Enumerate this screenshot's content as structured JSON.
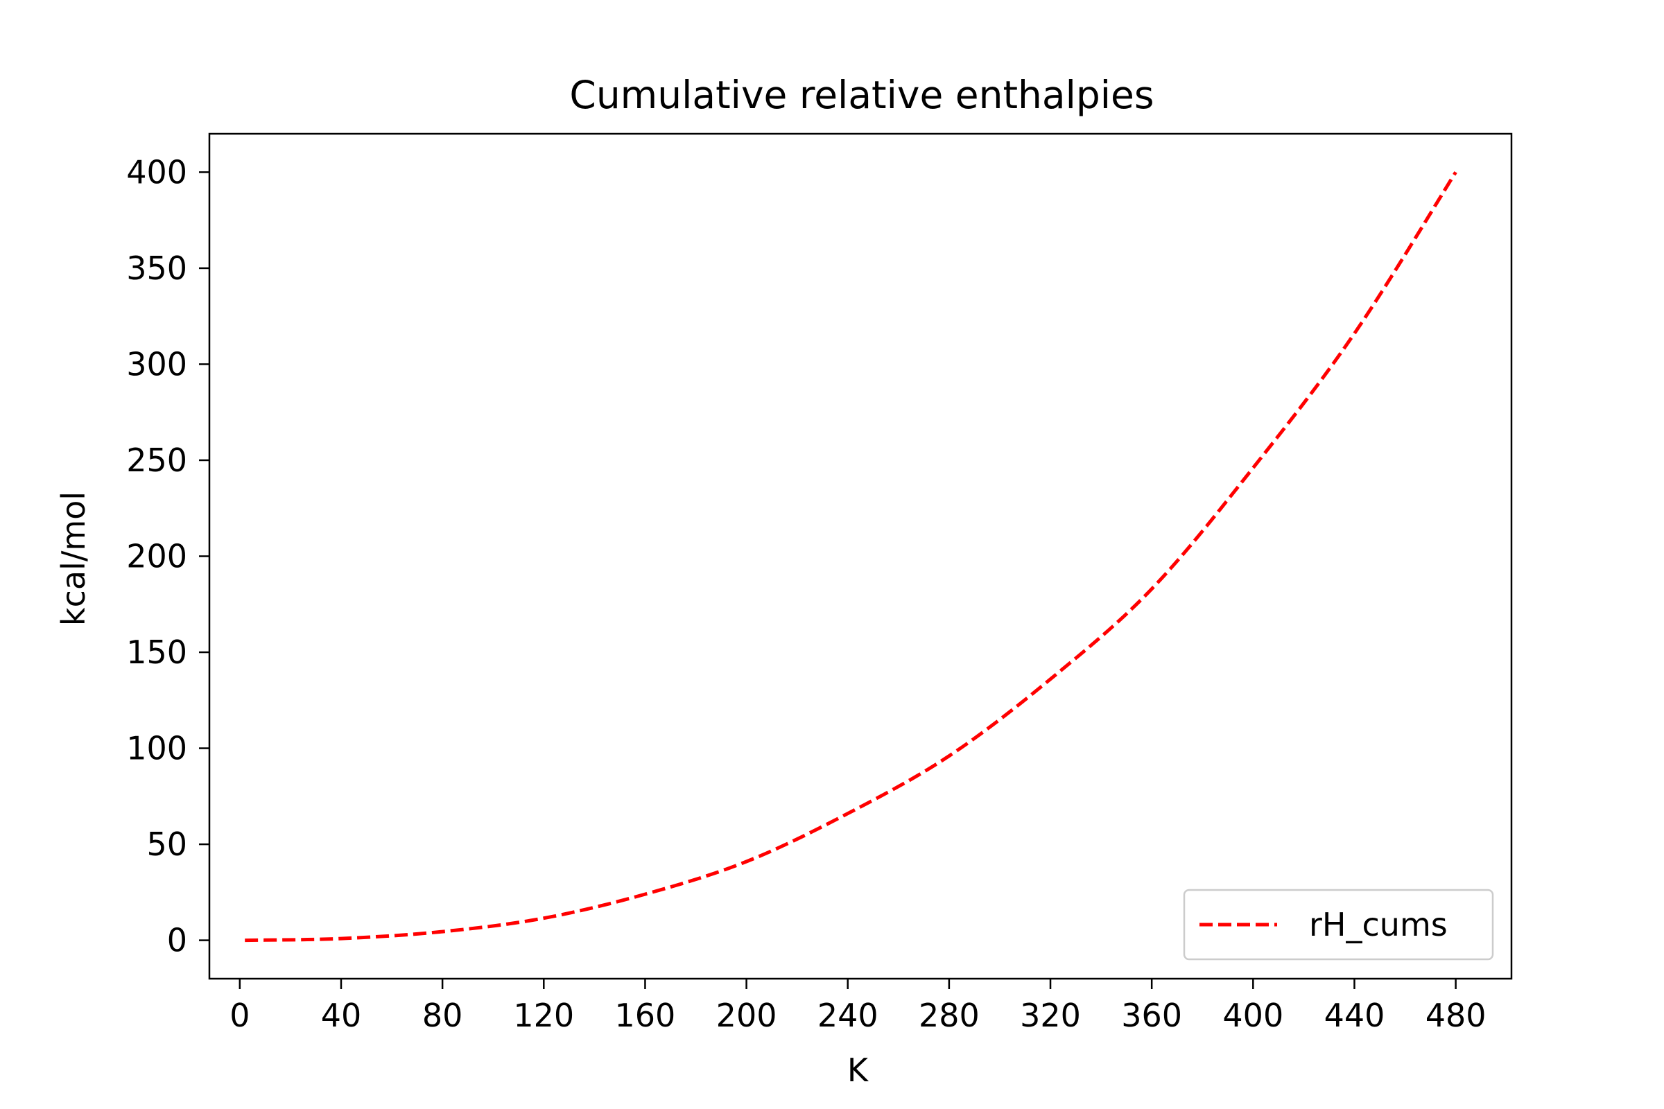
{
  "chart_data": {
    "type": "line",
    "title": "Cumulative relative enthalpies",
    "xlabel": "K",
    "ylabel": "kcal/mol",
    "xlim": [
      -12,
      502
    ],
    "ylim": [
      -20,
      420
    ],
    "xticks": [
      0,
      40,
      80,
      120,
      160,
      200,
      240,
      280,
      320,
      360,
      400,
      440,
      480
    ],
    "xtick_labels": [
      "0",
      "40",
      "80",
      "120",
      "160",
      "200",
      "240",
      "280",
      "320",
      "360",
      "400",
      "440",
      "480"
    ],
    "yticks": [
      0,
      50,
      100,
      150,
      200,
      250,
      300,
      350,
      400
    ],
    "ytick_labels": [
      "0",
      "50",
      "100",
      "150",
      "200",
      "250",
      "300",
      "350",
      "400"
    ],
    "grid": false,
    "legend_position": "lower-right",
    "series": [
      {
        "name": "rH_cums",
        "color": "#ff0000",
        "style": "dashed",
        "x": [
          2,
          40,
          80,
          120,
          160,
          200,
          240,
          280,
          320,
          360,
          400,
          440,
          480
        ],
        "y": [
          0,
          0.9,
          4.5,
          11.5,
          24,
          41,
          66,
          96,
          136,
          183,
          246,
          316,
          400
        ]
      }
    ]
  }
}
